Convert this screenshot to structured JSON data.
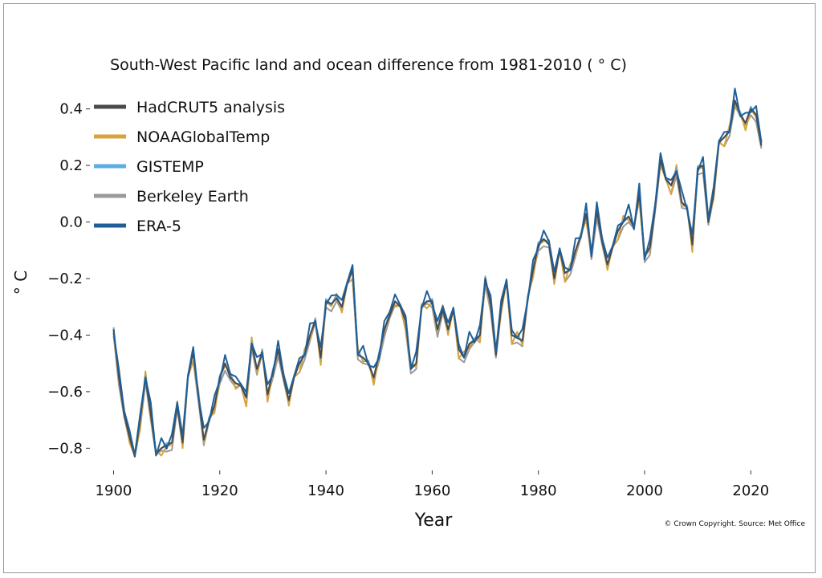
{
  "chart_data": {
    "type": "line",
    "title": "South-West Pacific land and ocean difference from 1981-2010 ( ° C)",
    "xlabel": "Year",
    "ylabel": "° C",
    "xlim": [
      1896,
      2026
    ],
    "ylim": [
      -0.87,
      0.47
    ],
    "xticks": [
      1900,
      1920,
      1940,
      1960,
      1980,
      2000,
      2020
    ],
    "yticks": [
      0.4,
      0.2,
      0.0,
      -0.2,
      -0.4,
      -0.6,
      -0.8
    ],
    "ytick_labels": [
      "0.4",
      "0.2",
      "0.0",
      "−0.2",
      "−0.4",
      "−0.6",
      "−0.8"
    ],
    "grid": false,
    "legend_position": "top-left",
    "credit": "© Crown Copyright. Source: Met Office",
    "start_year": 1900,
    "base_series": [
      -0.38,
      -0.55,
      -0.68,
      -0.76,
      -0.83,
      -0.7,
      -0.55,
      -0.68,
      -0.82,
      -0.8,
      -0.79,
      -0.78,
      -0.65,
      -0.78,
      -0.55,
      -0.46,
      -0.62,
      -0.77,
      -0.7,
      -0.65,
      -0.55,
      -0.5,
      -0.55,
      -0.57,
      -0.58,
      -0.62,
      -0.43,
      -0.52,
      -0.46,
      -0.61,
      -0.53,
      -0.45,
      -0.55,
      -0.63,
      -0.55,
      -0.5,
      -0.47,
      -0.4,
      -0.35,
      -0.48,
      -0.28,
      -0.29,
      -0.27,
      -0.3,
      -0.22,
      -0.17,
      -0.47,
      -0.48,
      -0.5,
      -0.55,
      -0.47,
      -0.38,
      -0.33,
      -0.28,
      -0.3,
      -0.35,
      -0.52,
      -0.5,
      -0.3,
      -0.28,
      -0.28,
      -0.38,
      -0.31,
      -0.38,
      -0.31,
      -0.45,
      -0.48,
      -0.43,
      -0.42,
      -0.4,
      -0.2,
      -0.29,
      -0.47,
      -0.3,
      -0.21,
      -0.4,
      -0.41,
      -0.42,
      -0.27,
      -0.17,
      -0.08,
      -0.06,
      -0.08,
      -0.2,
      -0.1,
      -0.18,
      -0.17,
      -0.1,
      -0.05,
      0.03,
      -0.11,
      0.04,
      -0.07,
      -0.15,
      -0.09,
      -0.03,
      0.0,
      0.02,
      -0.02,
      0.1,
      -0.12,
      -0.09,
      0.05,
      0.22,
      0.15,
      0.13,
      0.18,
      0.07,
      0.05,
      -0.08,
      0.19,
      0.2,
      0.0,
      0.1,
      0.28,
      0.3,
      0.32,
      0.43,
      0.38,
      0.35,
      0.4,
      0.38,
      0.27
    ],
    "series": [
      {
        "name": "HadCRUT5 analysis",
        "color": "#4a4a4a",
        "delta": [
          0.0,
          0.0
        ]
      },
      {
        "name": "NOAAGlobalTemp",
        "color": "#d9a33b",
        "delta": [
          0.01,
          -0.02
        ]
      },
      {
        "name": "GISTEMP",
        "color": "#5aaee0",
        "delta": [
          0.02,
          0.01
        ]
      },
      {
        "name": "Berkeley Earth",
        "color": "#9a9a9a",
        "delta": [
          -0.01,
          -0.02
        ]
      },
      {
        "name": "ERA-5",
        "color": "#1f5f99",
        "delta": [
          0.0,
          0.03
        ]
      }
    ]
  }
}
